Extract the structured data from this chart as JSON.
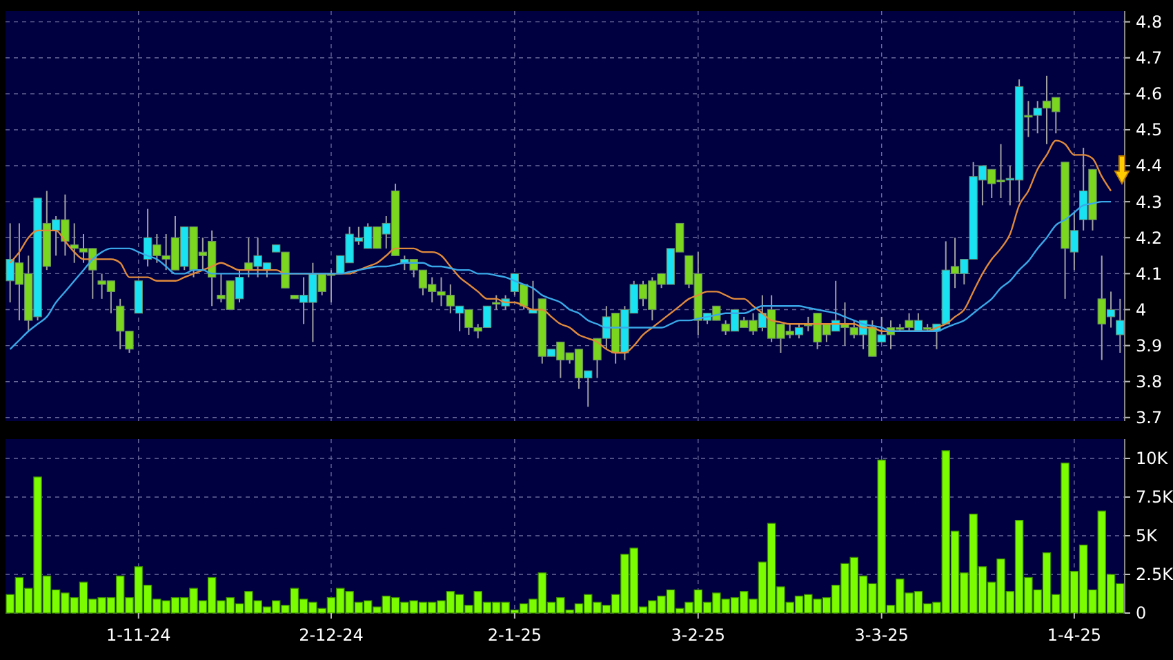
{
  "chart_data": [
    {
      "type": "candlestick",
      "categories": [
        null,
        null,
        null,
        null,
        null,
        null,
        null,
        null,
        null,
        null,
        null,
        null,
        null,
        null,
        null,
        null,
        null,
        null,
        null,
        null,
        null,
        null,
        null,
        null,
        null,
        null,
        null,
        null,
        null,
        null,
        null,
        null,
        null,
        null,
        null,
        null,
        null,
        null,
        null,
        null,
        null,
        null,
        null,
        null,
        null,
        null,
        null,
        null,
        null,
        null,
        null,
        null,
        null,
        null,
        null,
        null,
        null,
        null,
        null,
        null,
        null,
        null,
        null,
        null,
        null,
        null,
        null,
        null,
        null,
        null,
        null,
        null,
        null,
        null,
        null,
        null,
        null,
        null,
        null,
        null,
        null,
        null,
        null,
        null,
        null,
        null,
        null,
        null,
        null,
        null,
        null,
        null,
        null,
        null,
        null,
        null,
        null,
        null,
        null,
        null,
        null,
        null,
        null,
        null,
        null,
        null,
        null,
        null,
        null,
        null,
        null,
        null,
        null,
        null,
        null,
        null,
        null,
        null,
        null,
        null,
        null,
        null
      ],
      "ohlc": [
        [
          4.08,
          4.24,
          4.02,
          4.14
        ],
        [
          4.13,
          4.24,
          3.97,
          4.07
        ],
        [
          4.1,
          4.15,
          3.94,
          3.97
        ],
        [
          3.98,
          4.31,
          3.97,
          4.31
        ],
        [
          4.24,
          4.33,
          4.11,
          4.12
        ],
        [
          4.22,
          4.26,
          4.15,
          4.25
        ],
        [
          4.25,
          4.32,
          4.15,
          4.19
        ],
        [
          4.18,
          4.24,
          4.13,
          4.17
        ],
        [
          4.17,
          4.21,
          4.13,
          4.16
        ],
        [
          4.17,
          4.17,
          4.03,
          4.11
        ],
        [
          4.08,
          4.1,
          4.03,
          4.07
        ],
        [
          4.08,
          4.08,
          3.99,
          4.05
        ],
        [
          4.01,
          4.03,
          3.89,
          3.94
        ],
        [
          3.94,
          3.94,
          3.88,
          3.89
        ],
        [
          3.99,
          4.08,
          3.99,
          4.08
        ],
        [
          4.14,
          4.28,
          4.12,
          4.2
        ],
        [
          4.18,
          4.21,
          4.13,
          4.15
        ],
        [
          4.15,
          4.21,
          4.11,
          4.14
        ],
        [
          4.2,
          4.26,
          4.11,
          4.11
        ],
        [
          4.12,
          4.23,
          4.11,
          4.23
        ],
        [
          4.23,
          4.23,
          4.09,
          4.11
        ],
        [
          4.16,
          4.2,
          4.11,
          4.15
        ],
        [
          4.19,
          4.22,
          4.01,
          4.09
        ],
        [
          4.04,
          4.1,
          4.02,
          4.03
        ],
        [
          4.08,
          4.08,
          4.0,
          4.0
        ],
        [
          4.03,
          4.11,
          4.02,
          4.09
        ],
        [
          4.13,
          4.2,
          4.09,
          4.11
        ],
        [
          4.12,
          4.2,
          4.09,
          4.15
        ],
        [
          4.11,
          4.13,
          4.09,
          4.13
        ],
        [
          4.16,
          4.18,
          4.16,
          4.18
        ],
        [
          4.16,
          4.16,
          4.06,
          4.06
        ],
        [
          4.04,
          4.04,
          4.03,
          4.03
        ],
        [
          4.02,
          4.09,
          3.96,
          4.04
        ],
        [
          4.02,
          4.13,
          3.91,
          4.1
        ],
        [
          4.1,
          4.1,
          4.04,
          4.05
        ],
        [
          4.1,
          4.11,
          4.02,
          4.095
        ],
        [
          4.1,
          4.15,
          4.1,
          4.15
        ],
        [
          4.13,
          4.23,
          4.13,
          4.21
        ],
        [
          4.19,
          4.23,
          4.18,
          4.2
        ],
        [
          4.17,
          4.24,
          4.17,
          4.23
        ],
        [
          4.23,
          4.23,
          4.17,
          4.17
        ],
        [
          4.21,
          4.26,
          4.17,
          4.24
        ],
        [
          4.33,
          4.35,
          4.15,
          4.15
        ],
        [
          4.13,
          4.15,
          4.11,
          4.14
        ],
        [
          4.14,
          4.14,
          4.09,
          4.11
        ],
        [
          4.11,
          4.11,
          4.04,
          4.06
        ],
        [
          4.07,
          4.09,
          4.02,
          4.05
        ],
        [
          4.05,
          4.09,
          4.01,
          4.04
        ],
        [
          4.04,
          4.07,
          3.99,
          4.01
        ],
        [
          3.99,
          4.01,
          3.94,
          4.01
        ],
        [
          4.0,
          4.0,
          3.93,
          3.95
        ],
        [
          3.95,
          3.96,
          3.92,
          3.94
        ],
        [
          3.95,
          4.01,
          3.95,
          4.01
        ],
        [
          4.02,
          4.04,
          4.0,
          4.015
        ],
        [
          4.01,
          4.04,
          4.0,
          4.03
        ],
        [
          4.05,
          4.1,
          4.04,
          4.1
        ],
        [
          4.07,
          4.07,
          4.0,
          4.01
        ],
        [
          3.99,
          4.08,
          3.99,
          4.0
        ],
        [
          4.03,
          4.03,
          3.85,
          3.87
        ],
        [
          3.87,
          3.89,
          3.87,
          3.89
        ],
        [
          3.91,
          3.91,
          3.81,
          3.86
        ],
        [
          3.88,
          3.88,
          3.85,
          3.86
        ],
        [
          3.89,
          3.89,
          3.78,
          3.81
        ],
        [
          3.81,
          3.83,
          3.73,
          3.83
        ],
        [
          3.92,
          3.92,
          3.81,
          3.86
        ],
        [
          3.92,
          4.01,
          3.89,
          3.98
        ],
        [
          3.99,
          3.99,
          3.85,
          3.88
        ],
        [
          3.88,
          4.01,
          3.86,
          4.0
        ],
        [
          3.99,
          4.08,
          3.99,
          4.07
        ],
        [
          4.07,
          4.08,
          4.01,
          4.03
        ],
        [
          4.08,
          4.09,
          3.97,
          4.0
        ],
        [
          4.1,
          4.1,
          4.06,
          4.07
        ],
        [
          4.07,
          4.17,
          4.07,
          4.17
        ],
        [
          4.24,
          4.24,
          4.16,
          4.16
        ],
        [
          4.15,
          4.15,
          4.06,
          4.07
        ],
        [
          4.1,
          4.16,
          3.93,
          3.97
        ],
        [
          3.97,
          3.99,
          3.96,
          3.99
        ],
        [
          4.01,
          4.01,
          3.97,
          3.97
        ],
        [
          3.96,
          3.97,
          3.93,
          3.94
        ],
        [
          3.94,
          4.0,
          3.94,
          4.0
        ],
        [
          3.97,
          3.98,
          3.95,
          3.95
        ],
        [
          3.97,
          3.99,
          3.93,
          3.94
        ],
        [
          3.95,
          4.04,
          3.94,
          3.99
        ],
        [
          4.0,
          4.04,
          3.91,
          3.92
        ],
        [
          3.96,
          3.96,
          3.88,
          3.92
        ],
        [
          3.94,
          3.96,
          3.92,
          3.93
        ],
        [
          3.93,
          3.96,
          3.92,
          3.95
        ],
        [
          3.96,
          3.98,
          3.94,
          3.955
        ],
        [
          3.99,
          3.99,
          3.89,
          3.91
        ],
        [
          3.96,
          3.96,
          3.91,
          3.93
        ],
        [
          3.94,
          4.08,
          3.94,
          3.97
        ],
        [
          3.96,
          4.02,
          3.9,
          3.95
        ],
        [
          3.95,
          3.97,
          3.92,
          3.93
        ],
        [
          3.93,
          3.97,
          3.89,
          3.97
        ],
        [
          3.95,
          3.97,
          3.87,
          3.87
        ],
        [
          3.91,
          3.98,
          3.91,
          3.93
        ],
        [
          3.95,
          3.97,
          3.89,
          3.93
        ],
        [
          3.95,
          3.96,
          3.94,
          3.945
        ],
        [
          3.97,
          3.99,
          3.94,
          3.95
        ],
        [
          3.94,
          3.99,
          3.94,
          3.97
        ],
        [
          3.95,
          3.96,
          3.94,
          3.945
        ],
        [
          3.94,
          3.96,
          3.89,
          3.96
        ],
        [
          3.96,
          4.19,
          3.96,
          4.11
        ],
        [
          4.12,
          4.2,
          4.06,
          4.1
        ],
        [
          4.1,
          4.14,
          4.07,
          4.14
        ],
        [
          4.14,
          4.41,
          4.14,
          4.37
        ],
        [
          4.36,
          4.4,
          4.29,
          4.4
        ],
        [
          4.39,
          4.39,
          4.31,
          4.35
        ],
        [
          4.36,
          4.46,
          4.31,
          4.355
        ],
        [
          4.36,
          4.4,
          4.29,
          4.365
        ],
        [
          4.36,
          4.64,
          4.3,
          4.62
        ],
        [
          4.54,
          4.58,
          4.48,
          4.535
        ],
        [
          4.54,
          4.58,
          4.49,
          4.56
        ],
        [
          4.58,
          4.65,
          4.46,
          4.56
        ],
        [
          4.59,
          4.59,
          4.49,
          4.55
        ],
        [
          4.41,
          4.41,
          4.03,
          4.17
        ],
        [
          4.16,
          4.27,
          4.11,
          4.22
        ],
        [
          4.25,
          4.45,
          4.22,
          4.33
        ],
        [
          4.39,
          4.39,
          4.22,
          4.25
        ],
        [
          4.03,
          4.15,
          3.86,
          3.96
        ],
        [
          3.98,
          4.05,
          3.95,
          4.0
        ],
        [
          3.93,
          4.03,
          3.88,
          3.97
        ]
      ],
      "colors": [
        "#19e3f2",
        "#7ad61e",
        "#7ad61e",
        "#19e3f2",
        "#7ad61e",
        "#19e3f2",
        "#7ad61e",
        "#7ad61e",
        "#7ad61e",
        "#7ad61e",
        "#7ad61e",
        "#7ad61e",
        "#7ad61e",
        "#7ad61e",
        "#19e3f2",
        "#19e3f2",
        "#7ad61e",
        "#7ad61e",
        "#7ad61e",
        "#19e3f2",
        "#7ad61e",
        "#7ad61e",
        "#7ad61e",
        "#7ad61e",
        "#7ad61e",
        "#19e3f2",
        "#7ad61e",
        "#19e3f2",
        "#19e3f2",
        "#19e3f2",
        "#7ad61e",
        "#7ad61e",
        "#19e3f2",
        "#19e3f2",
        "#7ad61e",
        "#7ad61e",
        "#19e3f2",
        "#19e3f2",
        "#19e3f2",
        "#19e3f2",
        "#7ad61e",
        "#19e3f2",
        "#7ad61e",
        "#19e3f2",
        "#7ad61e",
        "#7ad61e",
        "#7ad61e",
        "#7ad61e",
        "#7ad61e",
        "#19e3f2",
        "#7ad61e",
        "#7ad61e",
        "#19e3f2",
        "#7ad61e",
        "#19e3f2",
        "#19e3f2",
        "#7ad61e",
        "#19e3f2",
        "#7ad61e",
        "#19e3f2",
        "#7ad61e",
        "#7ad61e",
        "#7ad61e",
        "#19e3f2",
        "#7ad61e",
        "#19e3f2",
        "#7ad61e",
        "#19e3f2",
        "#19e3f2",
        "#7ad61e",
        "#7ad61e",
        "#7ad61e",
        "#19e3f2",
        "#7ad61e",
        "#7ad61e",
        "#7ad61e",
        "#19e3f2",
        "#7ad61e",
        "#7ad61e",
        "#19e3f2",
        "#7ad61e",
        "#7ad61e",
        "#19e3f2",
        "#7ad61e",
        "#7ad61e",
        "#7ad61e",
        "#19e3f2",
        "#7ad61e",
        "#7ad61e",
        "#7ad61e",
        "#19e3f2",
        "#7ad61e",
        "#7ad61e",
        "#19e3f2",
        "#7ad61e",
        "#19e3f2",
        "#7ad61e",
        "#7ad61e",
        "#7ad61e",
        "#19e3f2",
        "#7ad61e",
        "#19e3f2",
        "#19e3f2",
        "#7ad61e",
        "#19e3f2",
        "#19e3f2",
        "#19e3f2",
        "#7ad61e",
        "#7ad61e",
        "#19e3f2",
        "#19e3f2",
        "#7ad61e",
        "#19e3f2",
        "#7ad61e",
        "#7ad61e",
        "#7ad61e",
        "#19e3f2",
        "#19e3f2",
        "#7ad61e",
        "#7ad61e",
        "#19e3f2",
        "#19e3f2"
      ],
      "series": [
        {
          "type": "line",
          "color": "#e08a3c",
          "values": [
            4.13,
            4.16,
            4.2,
            4.22,
            4.22,
            4.22,
            4.19,
            4.16,
            4.14,
            4.14,
            4.14,
            4.14,
            4.13,
            4.09,
            4.09,
            4.09,
            4.08,
            4.08,
            4.08,
            4.09,
            4.1,
            4.11,
            4.12,
            4.13,
            4.12,
            4.11,
            4.11,
            4.11,
            4.11,
            4.11,
            4.1,
            4.1,
            4.1,
            4.1,
            4.1,
            4.1,
            4.1,
            4.1,
            4.11,
            4.12,
            4.13,
            4.15,
            4.17,
            4.17,
            4.17,
            4.16,
            4.16,
            4.15,
            4.12,
            4.09,
            4.07,
            4.05,
            4.03,
            4.03,
            4.02,
            4.02,
            4.01,
            4.0,
            4.0,
            3.98,
            3.96,
            3.95,
            3.93,
            3.92,
            3.91,
            3.89,
            3.88,
            3.88,
            3.9,
            3.93,
            3.95,
            3.97,
            3.99,
            4.01,
            4.03,
            4.04,
            4.05,
            4.05,
            4.04,
            4.03,
            4.03,
            4.01,
            3.99,
            3.97,
            3.965,
            3.96,
            3.96,
            3.96,
            3.96,
            3.96,
            3.96,
            3.96,
            3.96,
            3.95,
            3.95,
            3.94,
            3.94,
            3.94,
            3.94,
            3.94,
            3.94,
            3.95,
            3.96,
            3.98,
            4.0,
            4.05,
            4.1,
            4.14,
            4.17,
            4.21,
            4.29,
            4.33,
            4.39,
            4.43,
            4.47,
            4.46,
            4.43,
            4.43,
            4.42,
            4.37,
            4.33,
            null
          ]
        },
        {
          "type": "line",
          "color": "#3aa8e8",
          "values": [
            3.89,
            3.915,
            3.94,
            3.96,
            3.98,
            4.02,
            4.05,
            4.08,
            4.11,
            4.14,
            4.16,
            4.17,
            4.17,
            4.17,
            4.16,
            4.15,
            4.14,
            4.12,
            4.1,
            4.1,
            4.11,
            4.11,
            4.1,
            4.1,
            4.1,
            4.1,
            4.1,
            4.1,
            4.1,
            4.1,
            4.1,
            4.1,
            4.1,
            4.1,
            4.1,
            4.1,
            4.1,
            4.105,
            4.11,
            4.115,
            4.12,
            4.12,
            4.125,
            4.13,
            4.13,
            4.13,
            4.12,
            4.12,
            4.115,
            4.11,
            4.11,
            4.1,
            4.1,
            4.095,
            4.09,
            4.08,
            4.07,
            4.06,
            4.04,
            4.03,
            4.02,
            4.0,
            3.99,
            3.97,
            3.96,
            3.95,
            3.95,
            3.95,
            3.95,
            3.95,
            3.95,
            3.95,
            3.96,
            3.97,
            3.97,
            3.975,
            3.98,
            3.985,
            3.99,
            3.99,
            3.99,
            4.0,
            4.01,
            4.01,
            4.01,
            4.01,
            4.01,
            4.005,
            4.0,
            3.995,
            3.99,
            3.98,
            3.97,
            3.96,
            3.955,
            3.95,
            3.94,
            3.94,
            3.94,
            3.94,
            3.94,
            3.94,
            3.95,
            3.96,
            3.97,
            3.99,
            4.01,
            4.03,
            4.06,
            4.08,
            4.11,
            4.135,
            4.17,
            4.2,
            4.235,
            4.25,
            4.27,
            4.29,
            4.295,
            4.3,
            4.3,
            null
          ]
        }
      ],
      "ylim": [
        3.69,
        4.83
      ],
      "yticks": [
        3.7,
        3.8,
        3.9,
        4,
        4.1,
        4.2,
        4.3,
        4.4,
        4.5,
        4.6,
        4.7,
        4.8
      ],
      "grid": true,
      "tick_labels": "y"
    },
    {
      "type": "bar",
      "categories": [
        null,
        null,
        null,
        null,
        null,
        null,
        null,
        null,
        null,
        null,
        null,
        null,
        null,
        null,
        "1-11-24",
        null,
        null,
        null,
        null,
        null,
        null,
        null,
        null,
        null,
        null,
        null,
        null,
        null,
        null,
        null,
        null,
        null,
        null,
        null,
        null,
        "2-12-24",
        null,
        null,
        null,
        null,
        null,
        null,
        null,
        null,
        null,
        null,
        null,
        null,
        null,
        null,
        null,
        null,
        null,
        null,
        null,
        "2-1-25",
        null,
        null,
        null,
        null,
        null,
        null,
        null,
        null,
        null,
        null,
        null,
        null,
        null,
        null,
        null,
        null,
        null,
        null,
        null,
        "3-2-25",
        null,
        null,
        null,
        null,
        null,
        null,
        null,
        null,
        null,
        null,
        null,
        null,
        null,
        null,
        null,
        null,
        null,
        null,
        null,
        "3-3-25",
        null,
        null,
        null,
        null,
        null,
        null,
        null,
        null,
        null,
        null,
        null,
        null,
        null,
        null,
        null,
        null,
        null,
        null,
        null,
        null,
        "1-4-25",
        null,
        null,
        null,
        null,
        null
      ],
      "values": [
        1200,
        2300,
        1600,
        8800,
        2400,
        1500,
        1300,
        1000,
        2000,
        900,
        1000,
        1000,
        2400,
        1000,
        3000,
        1800,
        900,
        800,
        1000,
        1000,
        1600,
        800,
        2300,
        800,
        1000,
        600,
        1400,
        800,
        400,
        800,
        500,
        1600,
        900,
        700,
        300,
        1000,
        1600,
        1400,
        700,
        800,
        400,
        1100,
        1000,
        700,
        800,
        700,
        700,
        800,
        1400,
        1200,
        500,
        1400,
        700,
        700,
        700,
        200,
        600,
        900,
        2600,
        700,
        1000,
        200,
        600,
        1200,
        700,
        500,
        1200,
        3800,
        4200,
        400,
        800,
        1100,
        1500,
        300,
        700,
        1500,
        700,
        1300,
        900,
        1000,
        1400,
        900,
        3300,
        5800,
        1700,
        700,
        1100,
        1200,
        900,
        1000,
        1800,
        3200,
        3600,
        2400,
        1900,
        9900,
        500,
        2200,
        1300,
        1400,
        600,
        700,
        10500,
        5300,
        2600,
        6400,
        3000,
        2000,
        3500,
        1400,
        6000,
        2300,
        1500,
        3900,
        1200,
        9700,
        2700,
        4400,
        1500,
        6600,
        2500,
        1900
      ],
      "color": "#7cfc00",
      "ylim": [
        0,
        11250
      ],
      "yticks": [
        0,
        {
          "value": 2500,
          "label": "2.5K"
        },
        {
          "value": 5000,
          "label": "5K"
        },
        {
          "value": 7500,
          "label": "7.5K"
        },
        {
          "value": 10000,
          "label": "10K"
        }
      ],
      "grid": true
    }
  ]
}
